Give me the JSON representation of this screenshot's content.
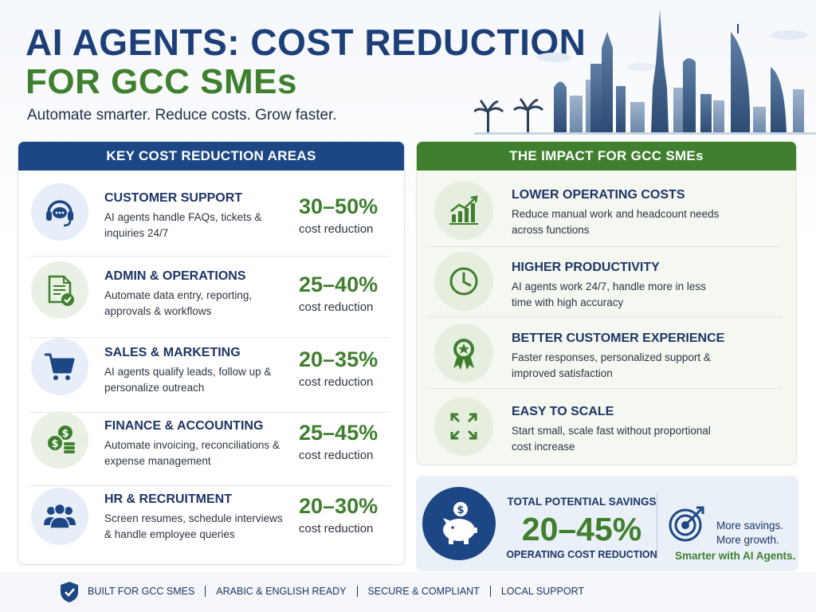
{
  "header": {
    "title_line1": "AI AGENTS: COST REDUCTION",
    "title_line2": "FOR GCC SMEs",
    "subtitle": "Automate smarter. Reduce costs. Grow faster."
  },
  "left_panel": {
    "heading": "KEY COST REDUCTION AREAS",
    "rows": [
      {
        "title": "CUSTOMER SUPPORT",
        "desc": "AI agents handle FAQs, tickets & inquiries 24/7",
        "pct": "30–50%",
        "pct_label": "cost reduction",
        "icon": "headset-icon"
      },
      {
        "title": "ADMIN & OPERATIONS",
        "desc": "Automate data entry, reporting, approvals & workflows",
        "pct": "25–40%",
        "pct_label": "cost reduction",
        "icon": "document-check-icon"
      },
      {
        "title": "SALES & MARKETING",
        "desc": "AI agents qualify leads, follow up & personalize outreach",
        "pct": "20–35%",
        "pct_label": "cost reduction",
        "icon": "cart-icon"
      },
      {
        "title": "FINANCE & ACCOUNTING",
        "desc": "Automate invoicing, reconciliations & expense management",
        "pct": "25–45%",
        "pct_label": "cost reduction",
        "icon": "coins-icon"
      },
      {
        "title": "HR & RECRUITMENT",
        "desc": "Screen resumes, schedule interviews & handle employee queries",
        "pct": "20–30%",
        "pct_label": "cost reduction",
        "icon": "people-icon"
      }
    ]
  },
  "right_panel": {
    "heading": "THE IMPACT FOR GCC SMEs",
    "rows": [
      {
        "title": "LOWER OPERATING COSTS",
        "desc": "Reduce manual work and headcount needs across functions",
        "icon": "growth-chart-icon"
      },
      {
        "title": "HIGHER PRODUCTIVITY",
        "desc": "AI agents work 24/7, handle more in less time with high accuracy",
        "icon": "clock-icon"
      },
      {
        "title": "BETTER CUSTOMER EXPERIENCE",
        "desc": "Faster responses, personalized support & improved satisfaction",
        "icon": "award-icon"
      },
      {
        "title": "EASY TO SCALE",
        "desc": "Start small, scale fast without proportional cost increase",
        "icon": "expand-icon"
      }
    ]
  },
  "savings": {
    "label": "TOTAL POTENTIAL SAVINGS",
    "value": "20–45%",
    "sub": "OPERATING COST REDUCTION",
    "tagline1": "More savings.",
    "tagline2": "More growth.",
    "tagline3": "Smarter with AI Agents."
  },
  "footer": {
    "items": [
      "BUILT FOR GCC SMES",
      "ARABIC & ENGLISH READY",
      "SECURE & COMPLIANT",
      "LOCAL SUPPORT"
    ]
  },
  "colors": {
    "navy": "#1d4784",
    "green": "#3f7f2e",
    "dark_text": "#1d3566"
  }
}
